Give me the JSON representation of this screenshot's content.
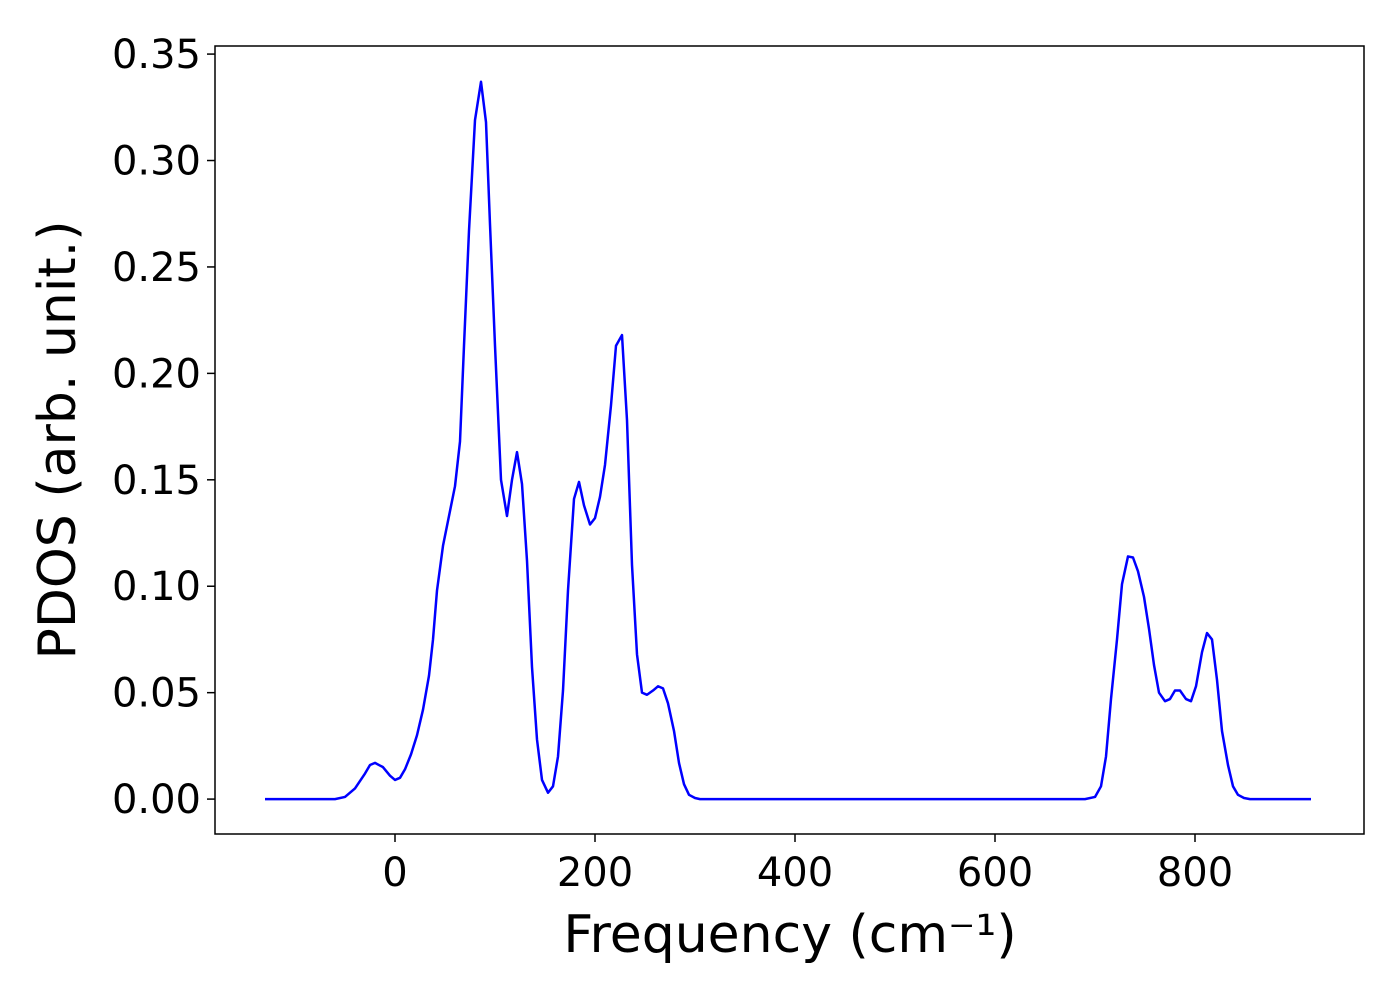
{
  "chart_data": {
    "type": "line",
    "x_label": "Frequency (cm⁻¹)",
    "y_label": "PDOS (arb. unit.)",
    "x": [
      -130,
      -60,
      -50,
      -40,
      -30,
      -25,
      -20,
      -12,
      -5,
      0,
      5,
      10,
      16,
      22,
      28,
      34,
      38,
      42,
      48,
      60,
      65,
      69,
      74,
      80,
      86,
      91,
      95,
      100,
      106,
      112,
      117,
      122,
      127,
      132,
      137,
      142,
      147,
      153,
      158,
      163,
      168,
      173,
      179,
      184,
      189,
      195,
      200,
      205,
      210,
      216,
      221,
      227,
      232,
      237,
      242,
      247,
      252,
      258,
      263,
      268,
      273,
      279,
      284,
      289,
      294,
      300,
      305,
      690,
      700,
      706,
      711,
      716,
      722,
      727,
      733,
      738,
      743,
      749,
      754,
      759,
      764,
      770,
      775,
      780,
      785,
      791,
      796,
      801,
      807,
      812,
      817,
      822,
      827,
      833,
      838,
      843,
      849,
      855,
      916
    ],
    "series": [
      {
        "name": "PDOS",
        "color": "#0000ff",
        "values": [
          0,
          0,
          0.001,
          0.005,
          0.012,
          0.016,
          0.017,
          0.015,
          0.011,
          0.009,
          0.01,
          0.014,
          0.021,
          0.03,
          0.042,
          0.058,
          0.075,
          0.098,
          0.119,
          0.147,
          0.168,
          0.213,
          0.267,
          0.319,
          0.337,
          0.318,
          0.27,
          0.213,
          0.15,
          0.133,
          0.15,
          0.163,
          0.148,
          0.112,
          0.062,
          0.028,
          0.009,
          0.003,
          0.006,
          0.02,
          0.051,
          0.098,
          0.141,
          0.149,
          0.138,
          0.129,
          0.132,
          0.142,
          0.157,
          0.185,
          0.213,
          0.218,
          0.178,
          0.11,
          0.068,
          0.05,
          0.049,
          0.051,
          0.053,
          0.052,
          0.045,
          0.032,
          0.017,
          0.007,
          0.002,
          0.0005,
          0,
          0,
          0.001,
          0.006,
          0.02,
          0.047,
          0.075,
          0.101,
          0.114,
          0.1135,
          0.107,
          0.095,
          0.08,
          0.063,
          0.05,
          0.046,
          0.047,
          0.051,
          0.051,
          0.047,
          0.046,
          0.053,
          0.069,
          0.078,
          0.075,
          0.056,
          0.032,
          0.016,
          0.006,
          0.002,
          0.0005,
          0,
          0
        ]
      }
    ],
    "xlim": [
      -180,
      969
    ],
    "ylim": [
      -0.0164,
      0.3538
    ],
    "xticks": [
      0,
      200,
      400,
      600,
      800
    ],
    "yticks": [
      {
        "value": 0,
        "label": "0.00"
      },
      {
        "value": 0.05,
        "label": "0.05"
      },
      {
        "value": 0.1,
        "label": "0.10"
      },
      {
        "value": 0.15,
        "label": "0.15"
      },
      {
        "value": 0.2,
        "label": "0.20"
      },
      {
        "value": 0.25,
        "label": "0.25"
      },
      {
        "value": 0.3,
        "label": "0.30"
      },
      {
        "value": 0.35,
        "label": "0.35"
      }
    ],
    "grid": false
  }
}
